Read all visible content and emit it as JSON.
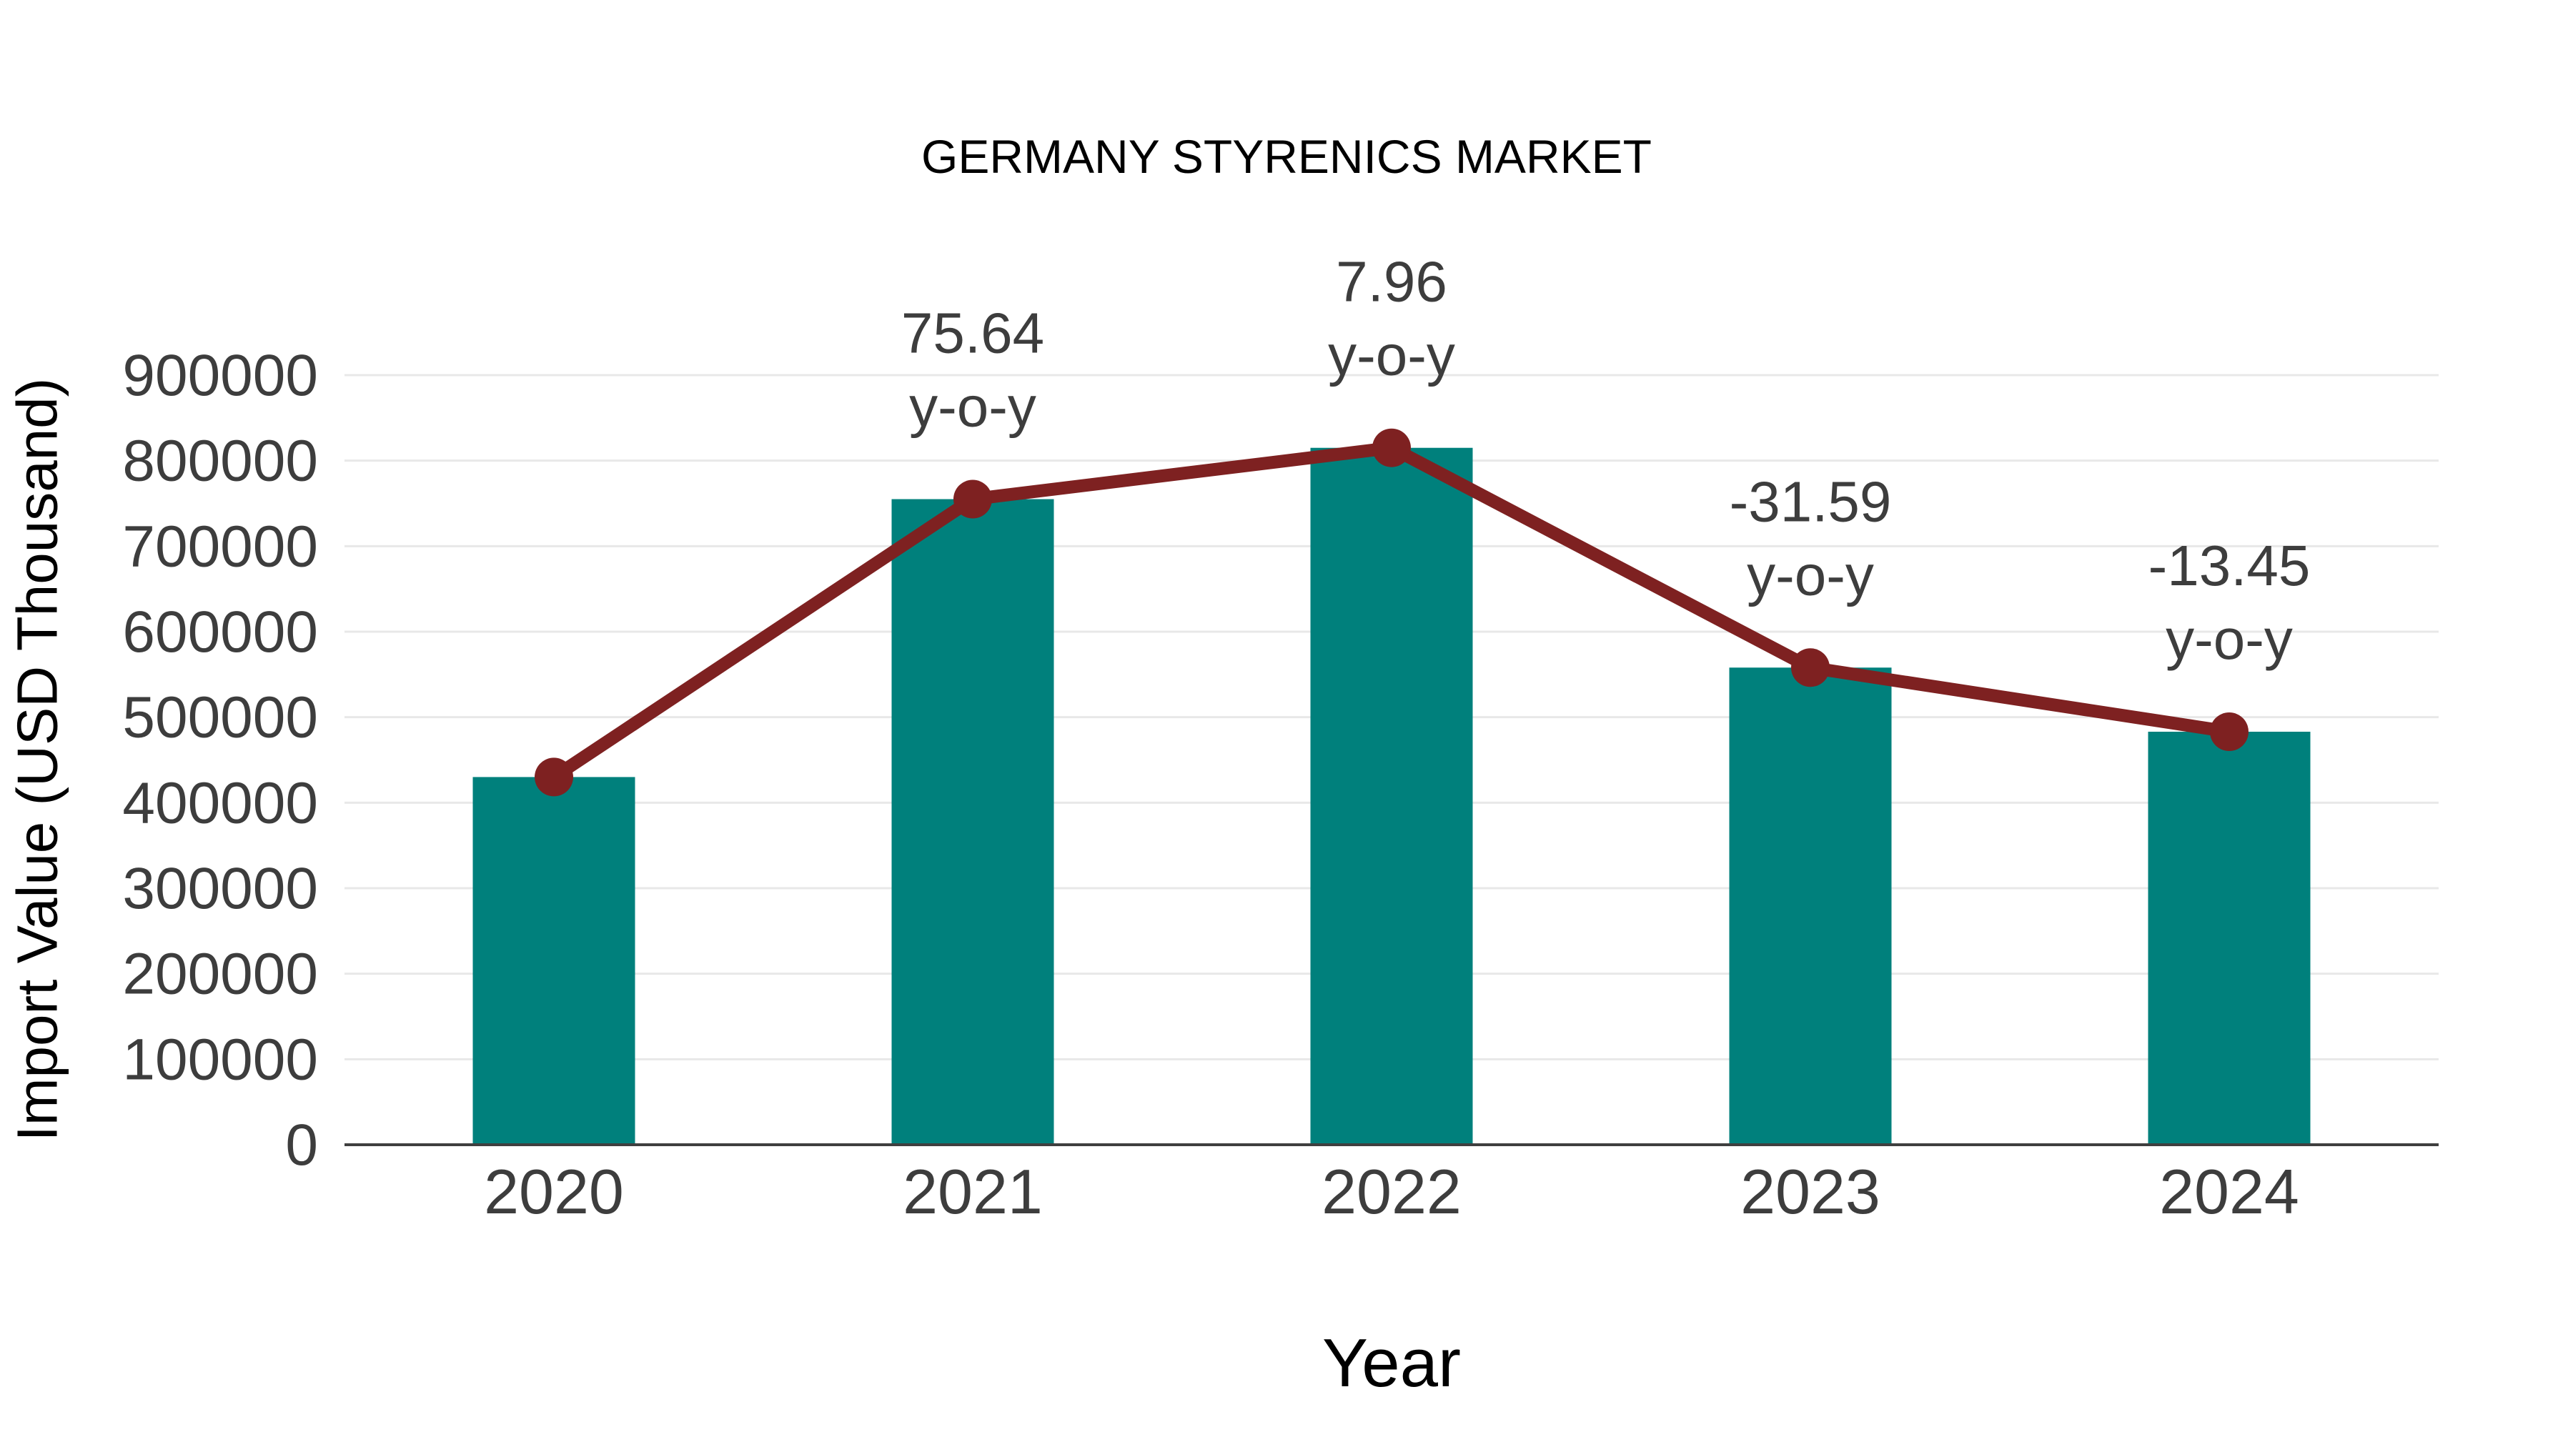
{
  "chart_data": {
    "type": "bar",
    "title": "GERMANY STYRENICS MARKET",
    "xlabel": "Year",
    "ylabel": "Import Value (USD Thousand)",
    "categories": [
      "2020",
      "2021",
      "2022",
      "2023",
      "2024"
    ],
    "series": [
      {
        "name": "Import Value (USD Thousand)",
        "kind": "bar",
        "values": [
          430000,
          755000,
          815000,
          558000,
          483000
        ]
      },
      {
        "name": "Import Value trend",
        "kind": "line",
        "values": [
          430000,
          755000,
          815000,
          558000,
          483000
        ],
        "marker": "circle"
      }
    ],
    "annotations": [
      {
        "category": "2021",
        "value_text": "75.64",
        "suffix_text": "y-o-y"
      },
      {
        "category": "2022",
        "value_text": "7.96",
        "suffix_text": "y-o-y"
      },
      {
        "category": "2023",
        "value_text": "-31.59",
        "suffix_text": "y-o-y"
      },
      {
        "category": "2024",
        "value_text": "-13.45",
        "suffix_text": "y-o-y"
      }
    ],
    "yoy_percent_by_year": {
      "2021": 75.64,
      "2022": 7.96,
      "2023": -31.59,
      "2024": -13.45
    },
    "ylim": [
      0,
      900000
    ],
    "yticks": [
      0,
      100000,
      200000,
      300000,
      400000,
      500000,
      600000,
      700000,
      800000,
      900000
    ],
    "grid": true,
    "legend_position": "none",
    "colors": {
      "bar": "#00807c",
      "line": "#7e2121",
      "marker": "#7e2121",
      "grid": "#e8e8e8",
      "axis": "#3f3f3f",
      "text": "#3d3d3d"
    }
  }
}
